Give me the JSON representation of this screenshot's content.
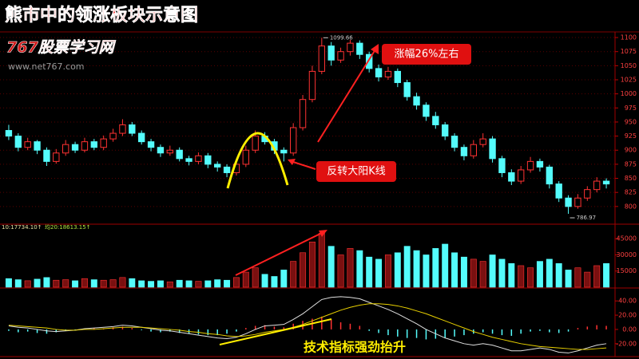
{
  "chart_data": {
    "type": "candlestick",
    "title": "熊市中的领涨板块示意图",
    "watermark": "767股票学习网",
    "watermark_url": "www.net767.com",
    "up_color": "#ff3232",
    "down_color": "#54fcfc",
    "ylim": [
      770,
      1110
    ],
    "yticks": [
      800,
      825,
      850,
      875,
      900,
      925,
      950,
      975,
      1000,
      1025,
      1050,
      1075,
      1100
    ],
    "grid": true,
    "ohlc": [
      [
        935,
        945,
        918,
        925
      ],
      [
        925,
        930,
        898,
        905
      ],
      [
        905,
        922,
        900,
        915
      ],
      [
        915,
        918,
        893,
        900
      ],
      [
        900,
        905,
        872,
        880
      ],
      [
        880,
        902,
        876,
        895
      ],
      [
        895,
        918,
        890,
        910
      ],
      [
        910,
        915,
        895,
        900
      ],
      [
        900,
        922,
        896,
        915
      ],
      [
        915,
        920,
        900,
        905
      ],
      [
        905,
        926,
        900,
        920
      ],
      [
        920,
        938,
        915,
        930
      ],
      [
        930,
        955,
        925,
        945
      ],
      [
        945,
        950,
        925,
        930
      ],
      [
        930,
        935,
        910,
        915
      ],
      [
        915,
        920,
        898,
        905
      ],
      [
        905,
        910,
        888,
        895
      ],
      [
        895,
        908,
        890,
        900
      ],
      [
        900,
        905,
        880,
        885
      ],
      [
        885,
        890,
        873,
        880
      ],
      [
        880,
        896,
        875,
        890
      ],
      [
        890,
        895,
        868,
        875
      ],
      [
        875,
        880,
        862,
        870
      ],
      [
        870,
        875,
        852,
        860
      ],
      [
        860,
        882,
        855,
        875
      ],
      [
        875,
        908,
        870,
        900
      ],
      [
        900,
        935,
        895,
        925
      ],
      [
        925,
        932,
        910,
        915
      ],
      [
        915,
        920,
        893,
        900
      ],
      [
        900,
        905,
        880,
        895
      ],
      [
        895,
        948,
        890,
        940
      ],
      [
        940,
        998,
        935,
        990
      ],
      [
        990,
        1050,
        985,
        1040
      ],
      [
        1040,
        1099.66,
        1035,
        1085
      ],
      [
        1085,
        1092,
        1050,
        1060
      ],
      [
        1060,
        1082,
        1055,
        1075
      ],
      [
        1075,
        1096,
        1068,
        1090
      ],
      [
        1090,
        1095,
        1062,
        1070
      ],
      [
        1070,
        1075,
        1038,
        1045
      ],
      [
        1045,
        1052,
        1022,
        1030
      ],
      [
        1030,
        1048,
        1025,
        1040
      ],
      [
        1040,
        1045,
        1012,
        1020
      ],
      [
        1020,
        1025,
        988,
        995
      ],
      [
        995,
        1002,
        972,
        980
      ],
      [
        980,
        985,
        952,
        960
      ],
      [
        960,
        968,
        938,
        945
      ],
      [
        945,
        950,
        918,
        925
      ],
      [
        925,
        930,
        898,
        905
      ],
      [
        905,
        910,
        882,
        890
      ],
      [
        890,
        918,
        885,
        910
      ],
      [
        910,
        930,
        905,
        920
      ],
      [
        920,
        925,
        878,
        885
      ],
      [
        885,
        890,
        852,
        860
      ],
      [
        860,
        866,
        838,
        845
      ],
      [
        845,
        872,
        840,
        865
      ],
      [
        865,
        888,
        860,
        880
      ],
      [
        880,
        885,
        862,
        870
      ],
      [
        870,
        874,
        832,
        840
      ],
      [
        840,
        845,
        808,
        815
      ],
      [
        815,
        820,
        786.97,
        800
      ],
      [
        800,
        822,
        796,
        815
      ],
      [
        815,
        836,
        810,
        830
      ],
      [
        830,
        852,
        825,
        845
      ],
      [
        845,
        850,
        832,
        840
      ]
    ],
    "annotations": [
      "涨幅26%左右",
      "反转大阳K线",
      "技术指标强劲抬升"
    ],
    "volume": {
      "ylim": [
        0,
        57000
      ],
      "yticks": [
        15000,
        30000,
        45000
      ],
      "legend": [
        "10:17734.10↑",
        "均20:18613.15↑"
      ],
      "values": [
        8000,
        7000,
        6000,
        7500,
        9000,
        6500,
        7000,
        6000,
        8000,
        7000,
        6500,
        7000,
        9000,
        8000,
        6000,
        5500,
        6000,
        5000,
        6500,
        6000,
        5500,
        6000,
        7000,
        6500,
        9000,
        14000,
        18000,
        12000,
        10000,
        16000,
        24000,
        32000,
        42000,
        50000,
        38000,
        30000,
        36000,
        34000,
        28000,
        26000,
        30000,
        32000,
        38000,
        34000,
        30000,
        36000,
        40000,
        32000,
        28000,
        26000,
        24000,
        30000,
        26000,
        22000,
        20000,
        18000,
        24000,
        26000,
        22000,
        16000,
        18000,
        14000,
        20000,
        22000
      ]
    },
    "macd": {
      "ylim": [
        -37,
        57
      ],
      "yticks": [
        {
          "value": 40,
          "label": "40.00"
        },
        {
          "value": 20,
          "label": "20.00"
        },
        {
          "value": 0,
          "label": "0.00"
        },
        {
          "value": -20,
          "label": "-20.00"
        }
      ],
      "histogram": [
        -2,
        -4,
        -3,
        -5,
        -6,
        -4,
        -2,
        -1,
        1,
        2,
        1,
        3,
        4,
        2,
        -1,
        -3,
        -4,
        -3,
        -5,
        -6,
        -7,
        -8,
        -8,
        -6,
        -3,
        2,
        5,
        6,
        4,
        3,
        8,
        12,
        15,
        18,
        14,
        10,
        8,
        5,
        -2,
        -5,
        -8,
        -10,
        -12,
        -12,
        -14,
        -13,
        -12,
        -10,
        -8,
        -6,
        -4,
        -6,
        -8,
        -9,
        -6,
        -3,
        -2,
        -4,
        -5,
        -3,
        2,
        4,
        6,
        5
      ],
      "lines": [
        {
          "color": "#e0e0e0",
          "values": [
            5,
            3,
            2,
            0,
            -2,
            -3,
            -2,
            -1,
            1,
            2,
            3,
            4,
            6,
            5,
            3,
            1,
            -1,
            -2,
            -4,
            -6,
            -8,
            -10,
            -12,
            -13,
            -11,
            -6,
            0,
            5,
            6,
            7,
            14,
            22,
            32,
            42,
            45,
            46,
            45,
            43,
            38,
            33,
            28,
            22,
            15,
            8,
            0,
            -6,
            -12,
            -16,
            -20,
            -22,
            -20,
            -22,
            -26,
            -30,
            -30,
            -28,
            -26,
            -28,
            -32,
            -33,
            -30,
            -26,
            -22,
            -20
          ]
        },
        {
          "color": "#e8d000",
          "values": [
            6,
            5,
            4,
            3,
            2,
            0,
            -1,
            -1,
            0,
            0,
            1,
            2,
            3,
            3,
            3,
            2,
            1,
            0,
            -1,
            -3,
            -4,
            -6,
            -7,
            -9,
            -10,
            -9,
            -7,
            -4,
            -2,
            0,
            3,
            7,
            12,
            17,
            22,
            27,
            31,
            34,
            36,
            36,
            35,
            33,
            30,
            26,
            22,
            17,
            12,
            7,
            2,
            -3,
            -7,
            -11,
            -14,
            -17,
            -20,
            -22,
            -24,
            -25,
            -26,
            -27,
            -28,
            -28,
            -27,
            -26
          ]
        }
      ]
    }
  }
}
